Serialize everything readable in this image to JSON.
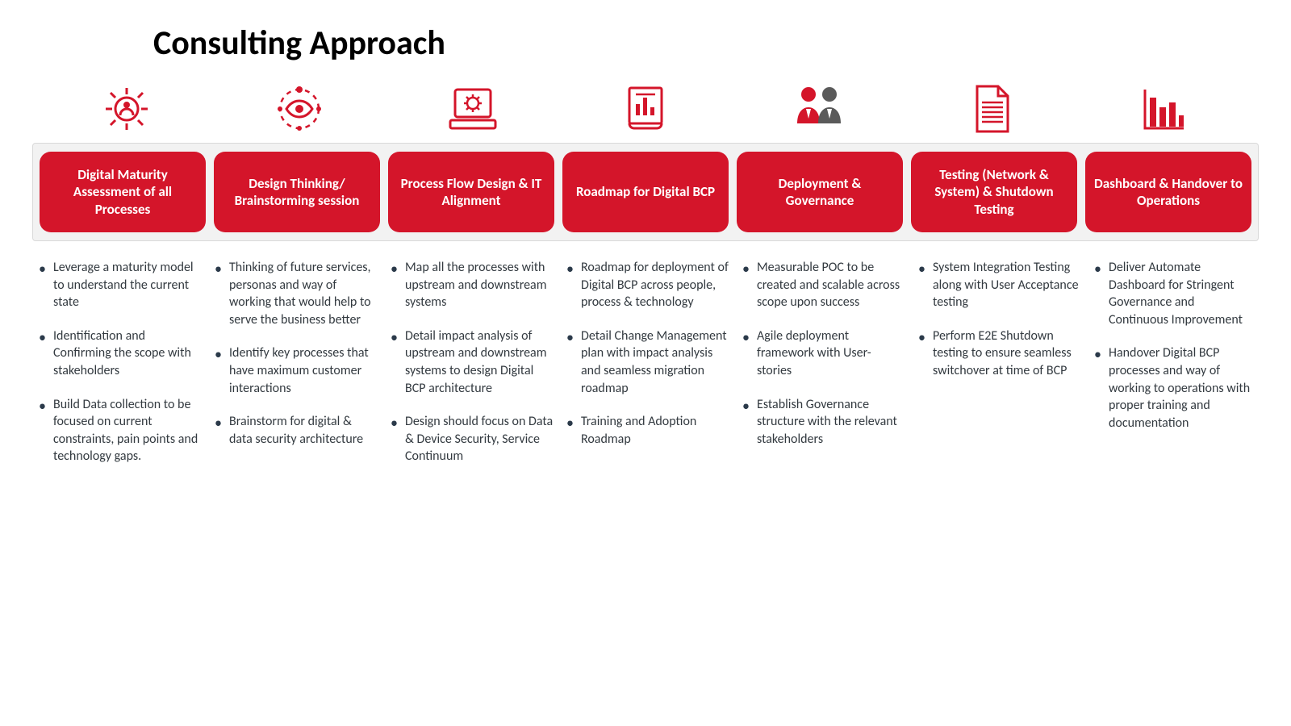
{
  "title": "Consulting Approach",
  "accent_color": "#d4152a",
  "secondary_color": "#5a5a5a",
  "background_bar": "#f2f2f2",
  "columns": [
    {
      "icon": "gear-person",
      "label": "Digital Maturity Assessment of all Processes",
      "bullets": [
        "Leverage a maturity model to understand the current state",
        "Identification and Confirming the scope with stakeholders",
        "Build Data collection to be focused on current constraints, pain points and technology gaps."
      ]
    },
    {
      "icon": "eye-orbit",
      "label": "Design Thinking/ Brainstorming session",
      "bullets": [
        "Thinking of future services, personas and way of working that would help to serve the business better",
        "Identify key processes that have maximum customer interactions",
        "Brainstorm for digital & data security architecture"
      ]
    },
    {
      "icon": "laptop-gear",
      "label": "Process Flow Design &  IT Alignment",
      "bullets": [
        "Map all the processes with upstream and downstream systems",
        "Detail impact analysis of upstream and downstream systems to design Digital BCP architecture",
        "Design should focus on Data & Device Security, Service Continuum"
      ]
    },
    {
      "icon": "chart-sheet",
      "label": "Roadmap for Digital BCP",
      "bullets": [
        "Roadmap for deployment of Digital BCP across people, process & technology",
        "Detail Change Management plan with impact analysis and seamless migration roadmap",
        "Training and Adoption Roadmap"
      ]
    },
    {
      "icon": "two-people",
      "label": "Deployment & Governance",
      "bullets": [
        "Measurable POC to be created and scalable across scope upon success",
        "Agile deployment framework with User-stories",
        "Establish Governance structure with the relevant stakeholders"
      ]
    },
    {
      "icon": "document-lines",
      "label": "Testing (Network & System) & Shutdown Testing",
      "bullets": [
        "System Integration Testing along with User Acceptance testing",
        "Perform E2E Shutdown testing to ensure seamless switchover at time of BCP"
      ]
    },
    {
      "icon": "bar-chart",
      "label": "Dashboard & Handover to Operations",
      "bullets": [
        "Deliver Automate Dashboard for Stringent Governance and Continuous Improvement",
        "Handover Digital BCP processes and way of working to operations with proper training and documentation"
      ]
    }
  ]
}
